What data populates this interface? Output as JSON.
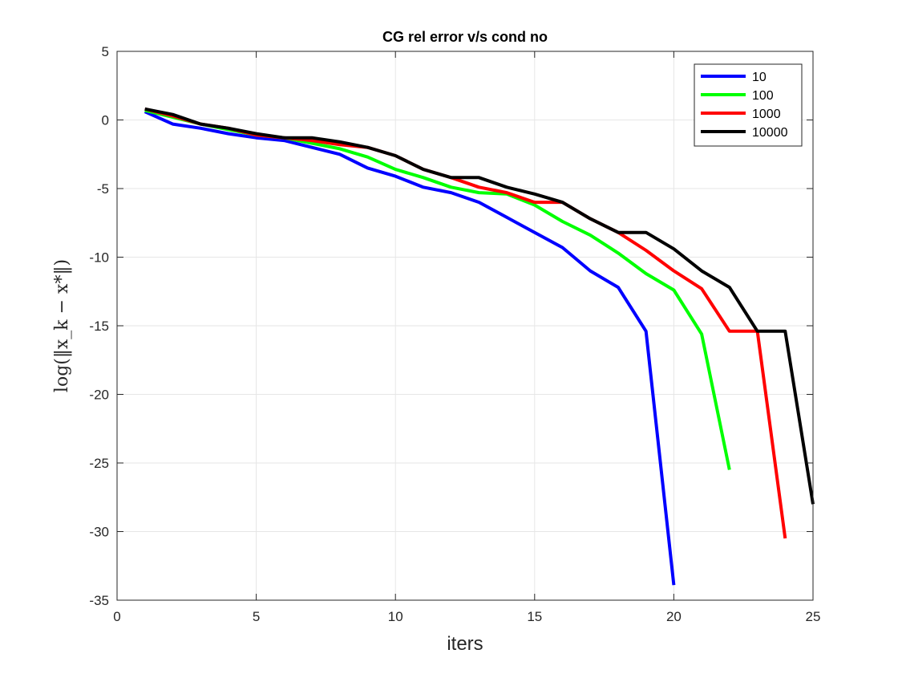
{
  "chart_data": {
    "type": "line",
    "title": "CG rel error v/s cond no",
    "xlabel": "iters",
    "ylabel": "log(‖x_k − x*‖)",
    "xlim": [
      0,
      25
    ],
    "ylim": [
      -35,
      5
    ],
    "xticks": [
      0,
      5,
      10,
      15,
      20,
      25
    ],
    "yticks": [
      5,
      0,
      -5,
      -10,
      -15,
      -20,
      -25,
      -30,
      -35
    ],
    "grid": true,
    "legend_position": "top-right",
    "series": [
      {
        "name": "10",
        "color": "#0000ff",
        "x": [
          1,
          2,
          3,
          4,
          5,
          6,
          7,
          8,
          9,
          10,
          11,
          12,
          13,
          14,
          15,
          16,
          17,
          18,
          19,
          20
        ],
        "y": [
          0.6,
          -0.3,
          -0.6,
          -1.0,
          -1.3,
          -1.5,
          -2.0,
          -2.5,
          -3.5,
          -4.1,
          -4.9,
          -5.3,
          -6.0,
          -7.1,
          -8.2,
          -9.3,
          -11.0,
          -12.2,
          -15.4,
          -33.9
        ]
      },
      {
        "name": "100",
        "color": "#00ff00",
        "x": [
          1,
          2,
          3,
          4,
          5,
          6,
          7,
          8,
          9,
          10,
          11,
          12,
          13,
          14,
          15,
          16,
          17,
          18,
          19,
          20,
          21,
          22
        ],
        "y": [
          0.7,
          0.2,
          -0.3,
          -0.7,
          -1.1,
          -1.3,
          -1.7,
          -2.1,
          -2.7,
          -3.6,
          -4.2,
          -4.9,
          -5.3,
          -5.4,
          -6.2,
          -7.4,
          -8.4,
          -9.7,
          -11.2,
          -12.4,
          -15.6,
          -25.5
        ]
      },
      {
        "name": "1000",
        "color": "#ff0000",
        "x": [
          1,
          2,
          3,
          4,
          5,
          6,
          7,
          8,
          9,
          10,
          11,
          12,
          13,
          14,
          15,
          16,
          17,
          18,
          19,
          20,
          21,
          22,
          23,
          24
        ],
        "y": [
          0.8,
          0.3,
          -0.3,
          -0.6,
          -1.1,
          -1.3,
          -1.5,
          -1.8,
          -2.0,
          -2.6,
          -3.6,
          -4.2,
          -4.9,
          -5.3,
          -6.0,
          -6.0,
          -7.2,
          -8.2,
          -9.5,
          -11.0,
          -12.3,
          -15.4,
          -15.4,
          -30.5
        ]
      },
      {
        "name": "10000",
        "color": "#000000",
        "x": [
          1,
          2,
          3,
          4,
          5,
          6,
          7,
          8,
          9,
          10,
          11,
          12,
          13,
          14,
          15,
          16,
          17,
          18,
          19,
          20,
          21,
          22,
          23,
          24,
          25
        ],
        "y": [
          0.8,
          0.4,
          -0.3,
          -0.6,
          -1.0,
          -1.3,
          -1.3,
          -1.6,
          -2.0,
          -2.6,
          -3.6,
          -4.2,
          -4.2,
          -4.9,
          -5.4,
          -6.0,
          -7.2,
          -8.2,
          -8.2,
          -9.4,
          -11.0,
          -12.2,
          -15.4,
          -15.4,
          -28.0
        ]
      }
    ]
  }
}
